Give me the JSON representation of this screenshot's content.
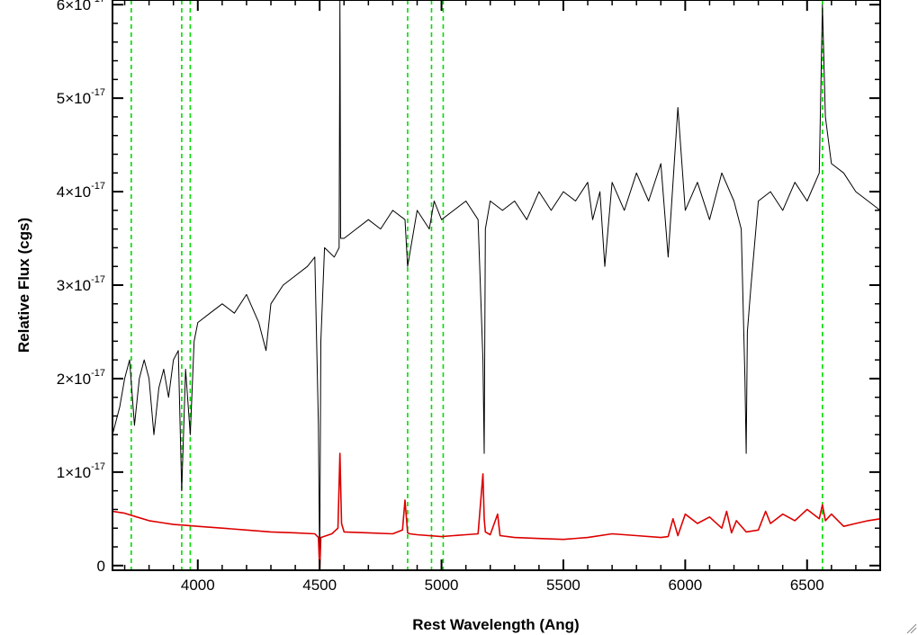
{
  "chart_data": {
    "type": "line",
    "xlabel": "Rest Wavelength (Ang)",
    "ylabel": "Relative Flux (cgs)",
    "xlim": [
      3650,
      6800
    ],
    "ylim": [
      -5e-19,
      6.05e-17
    ],
    "x_ticks": [
      {
        "value": 4000,
        "label": "4000"
      },
      {
        "value": 4500,
        "label": "4500"
      },
      {
        "value": 5000,
        "label": "5000"
      },
      {
        "value": 5500,
        "label": "5500"
      },
      {
        "value": 6000,
        "label": "6000"
      },
      {
        "value": 6500,
        "label": "6500"
      }
    ],
    "y_ticks": [
      {
        "value": 0,
        "mantissa": "0",
        "exp": ""
      },
      {
        "value": 1e-17,
        "mantissa": "1×10",
        "exp": "-17"
      },
      {
        "value": 2e-17,
        "mantissa": "2×10",
        "exp": "-17"
      },
      {
        "value": 3e-17,
        "mantissa": "3×10",
        "exp": "-17"
      },
      {
        "value": 4e-17,
        "mantissa": "4×10",
        "exp": "-17"
      },
      {
        "value": 5e-17,
        "mantissa": "5×10",
        "exp": "-17"
      },
      {
        "value": 6e-17,
        "mantissa": "6×10",
        "exp": "-17"
      }
    ],
    "reference_lines": [
      3727,
      3934,
      3969,
      4861,
      4959,
      5007,
      6563
    ],
    "series": [
      {
        "color": "#000000",
        "x": [
          3650,
          3680,
          3700,
          3720,
          3740,
          3760,
          3780,
          3800,
          3820,
          3840,
          3860,
          3880,
          3900,
          3920,
          3934,
          3950,
          3969,
          3985,
          4000,
          4050,
          4100,
          4150,
          4200,
          4250,
          4280,
          4300,
          4350,
          4400,
          4450,
          4480,
          4495,
          4500,
          4505,
          4520,
          4560,
          4580,
          4583,
          4586,
          4600,
          4650,
          4700,
          4750,
          4800,
          4850,
          4861,
          4900,
          4950,
          4970,
          5000,
          5050,
          5100,
          5150,
          5170,
          5175,
          5180,
          5200,
          5250,
          5300,
          5350,
          5400,
          5450,
          5500,
          5550,
          5600,
          5620,
          5650,
          5670,
          5700,
          5750,
          5800,
          5850,
          5900,
          5930,
          5950,
          5970,
          6000,
          6050,
          6100,
          6150,
          6200,
          6230,
          6245,
          6250,
          6255,
          6270,
          6300,
          6350,
          6400,
          6450,
          6500,
          6550,
          6563,
          6575,
          6600,
          6650,
          6700,
          6750,
          6800
        ],
        "y": [
          1.4e-17,
          1.7e-17,
          2e-17,
          2.2e-17,
          1.5e-17,
          2e-17,
          2.2e-17,
          2e-17,
          1.4e-17,
          1.9e-17,
          2.1e-17,
          1.8e-17,
          2.2e-17,
          2.3e-17,
          8e-18,
          2.1e-17,
          1.4e-17,
          2.4e-17,
          2.6e-17,
          2.7e-17,
          2.8e-17,
          2.7e-17,
          2.9e-17,
          2.6e-17,
          2.3e-17,
          2.8e-17,
          3e-17,
          3.1e-17,
          3.2e-17,
          3.3e-17,
          1.5e-17,
          -5e-19,
          2.4e-17,
          3.4e-17,
          3.3e-17,
          3.4e-17,
          6.05e-17,
          3.5e-17,
          3.5e-17,
          3.6e-17,
          3.7e-17,
          3.6e-17,
          3.8e-17,
          3.7e-17,
          3.2e-17,
          3.8e-17,
          3.6e-17,
          3.9e-17,
          3.7e-17,
          3.8e-17,
          3.9e-17,
          3.7e-17,
          2.2e-17,
          1.2e-17,
          3.6e-17,
          3.9e-17,
          3.8e-17,
          3.9e-17,
          3.7e-17,
          4e-17,
          3.8e-17,
          4e-17,
          3.9e-17,
          4.1e-17,
          3.7e-17,
          4e-17,
          3.2e-17,
          4.1e-17,
          3.8e-17,
          4.2e-17,
          3.9e-17,
          4.3e-17,
          3.3e-17,
          4.1e-17,
          4.9e-17,
          3.8e-17,
          4.1e-17,
          3.7e-17,
          4.2e-17,
          3.9e-17,
          3.6e-17,
          2e-17,
          1.2e-17,
          2.5e-17,
          3e-17,
          3.9e-17,
          4e-17,
          3.8e-17,
          4.1e-17,
          3.9e-17,
          4.2e-17,
          6e-17,
          4.8e-17,
          4.3e-17,
          4.2e-17,
          4e-17,
          3.9e-17,
          3.8e-17
        ]
      },
      {
        "color": "#dd0000",
        "x": [
          3650,
          3700,
          3750,
          3800,
          3850,
          3900,
          3950,
          4000,
          4100,
          4200,
          4300,
          4400,
          4480,
          4495,
          4500,
          4505,
          4550,
          4575,
          4583,
          4590,
          4600,
          4700,
          4800,
          4840,
          4850,
          4861,
          4870,
          4900,
          5000,
          5050,
          5100,
          5150,
          5170,
          5175,
          5180,
          5200,
          5230,
          5240,
          5300,
          5400,
          5500,
          5600,
          5700,
          5800,
          5900,
          5930,
          5950,
          5970,
          6000,
          6050,
          6100,
          6150,
          6170,
          6190,
          6210,
          6250,
          6300,
          6330,
          6350,
          6400,
          6450,
          6500,
          6550,
          6563,
          6575,
          6600,
          6650,
          6700,
          6750,
          6800
        ],
        "y": [
          5.8e-18,
          5.6e-18,
          5.2e-18,
          4.8e-18,
          4.6e-18,
          4.4e-18,
          4.3e-18,
          4.2e-18,
          4e-18,
          3.8e-18,
          3.6e-18,
          3.5e-18,
          3.4e-18,
          3e-18,
          -5e-19,
          3e-18,
          3.4e-18,
          4e-18,
          1.2e-17,
          4.5e-18,
          3.6e-18,
          3.5e-18,
          3.4e-18,
          3.8e-18,
          7e-18,
          3.5e-18,
          3.4e-18,
          3.3e-18,
          3.1e-18,
          3.2e-18,
          3.3e-18,
          3.4e-18,
          9.8e-18,
          5e-18,
          3.6e-18,
          3.3e-18,
          5.5e-18,
          3.2e-18,
          3e-18,
          2.9e-18,
          2.8e-18,
          3e-18,
          3.4e-18,
          3.2e-18,
          3e-18,
          3.1e-18,
          5e-18,
          3.2e-18,
          5.5e-18,
          4.5e-18,
          5.2e-18,
          4e-18,
          5.8e-18,
          3.5e-18,
          4.8e-18,
          3.6e-18,
          3.8e-18,
          5.8e-18,
          4.5e-18,
          5.5e-18,
          4.8e-18,
          6e-18,
          5e-18,
          6.5e-18,
          4.8e-18,
          5.5e-18,
          4.2e-18,
          4.5e-18,
          4.8e-18,
          5e-18
        ]
      }
    ]
  }
}
